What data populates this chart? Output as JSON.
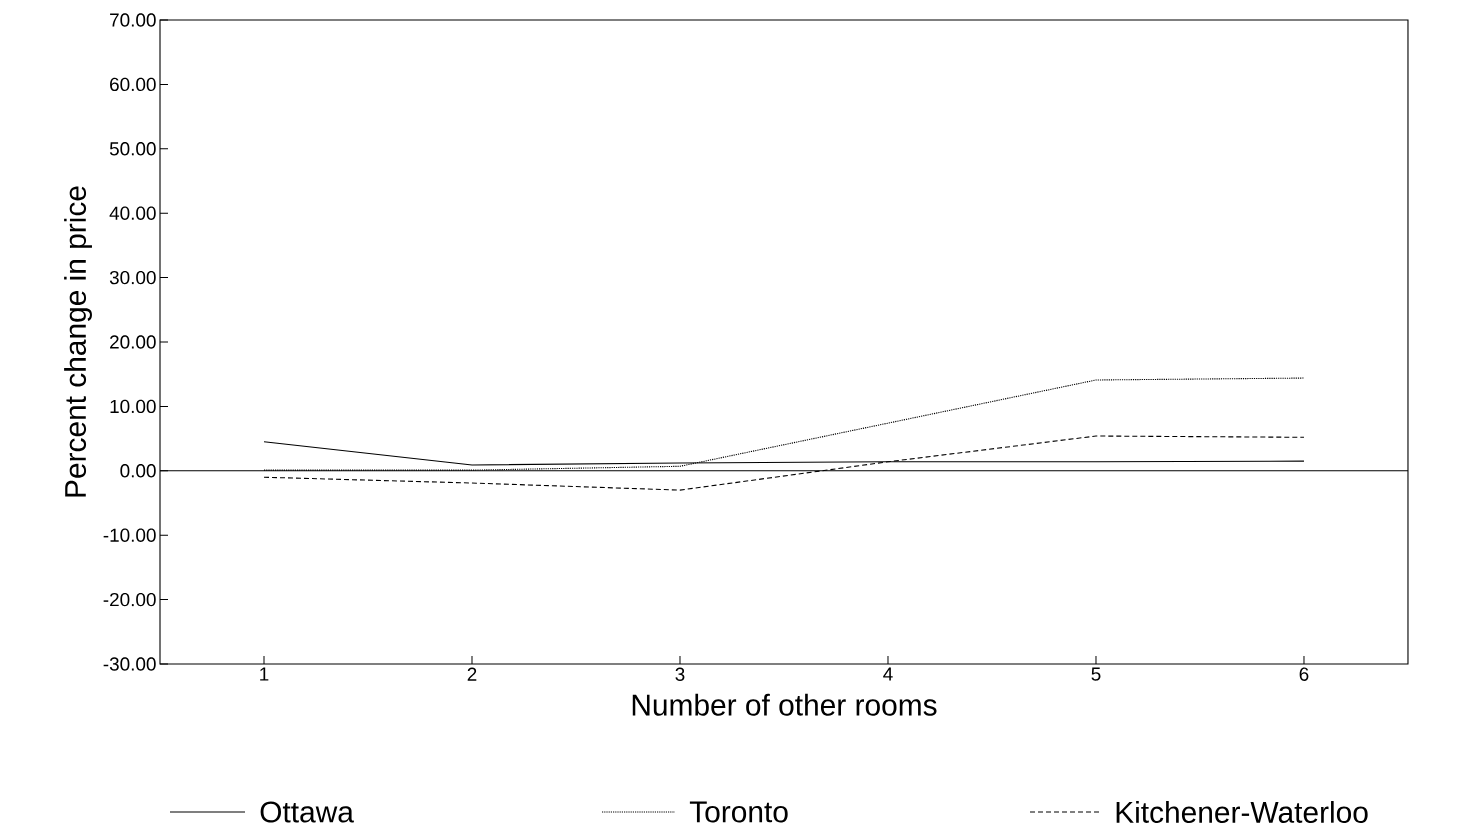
{
  "chart_data": {
    "type": "line",
    "xlabel": "Number of other rooms",
    "ylabel": "Percent change in price",
    "x": [
      1,
      2,
      3,
      4,
      5,
      6
    ],
    "series": [
      {
        "name": "Ottawa",
        "color": "#000000",
        "line_style": "solid",
        "values": [
          4.5,
          0.9,
          1.2,
          1.4,
          1.4,
          1.5
        ]
      },
      {
        "name": "Toronto",
        "color": "#000000",
        "line_style": "dotted",
        "values": [
          0.1,
          0.1,
          0.7,
          7.4,
          14.1,
          14.4
        ]
      },
      {
        "name": "Kitchener-Waterloo",
        "color": "#000000",
        "line_style": "dashed",
        "values": [
          -1.0,
          -1.9,
          -3.0,
          1.4,
          5.4,
          5.2
        ]
      }
    ],
    "xlim": [
      0.5,
      6.5
    ],
    "ylim": [
      -30,
      70
    ],
    "xticks": [
      1,
      2,
      3,
      4,
      5,
      6
    ],
    "yticks": [
      {
        "value": -30,
        "label": "-30.00"
      },
      {
        "value": -20,
        "label": "-20.00"
      },
      {
        "value": -10,
        "label": "-10.00"
      },
      {
        "value": 0,
        "label": "0.00"
      },
      {
        "value": 10,
        "label": "10.00"
      },
      {
        "value": 20,
        "label": "20.00"
      },
      {
        "value": 30,
        "label": "30.00"
      },
      {
        "value": 40,
        "label": "40.00"
      },
      {
        "value": 50,
        "label": "50.00"
      },
      {
        "value": 60,
        "label": "60.00"
      },
      {
        "value": 70,
        "label": "70.00"
      }
    ],
    "ref_lines": [
      {
        "axis": "y",
        "value": 0,
        "color": "#000000",
        "line_style": "solid"
      }
    ],
    "legend": "bottom",
    "marker": "none",
    "grid": false
  }
}
